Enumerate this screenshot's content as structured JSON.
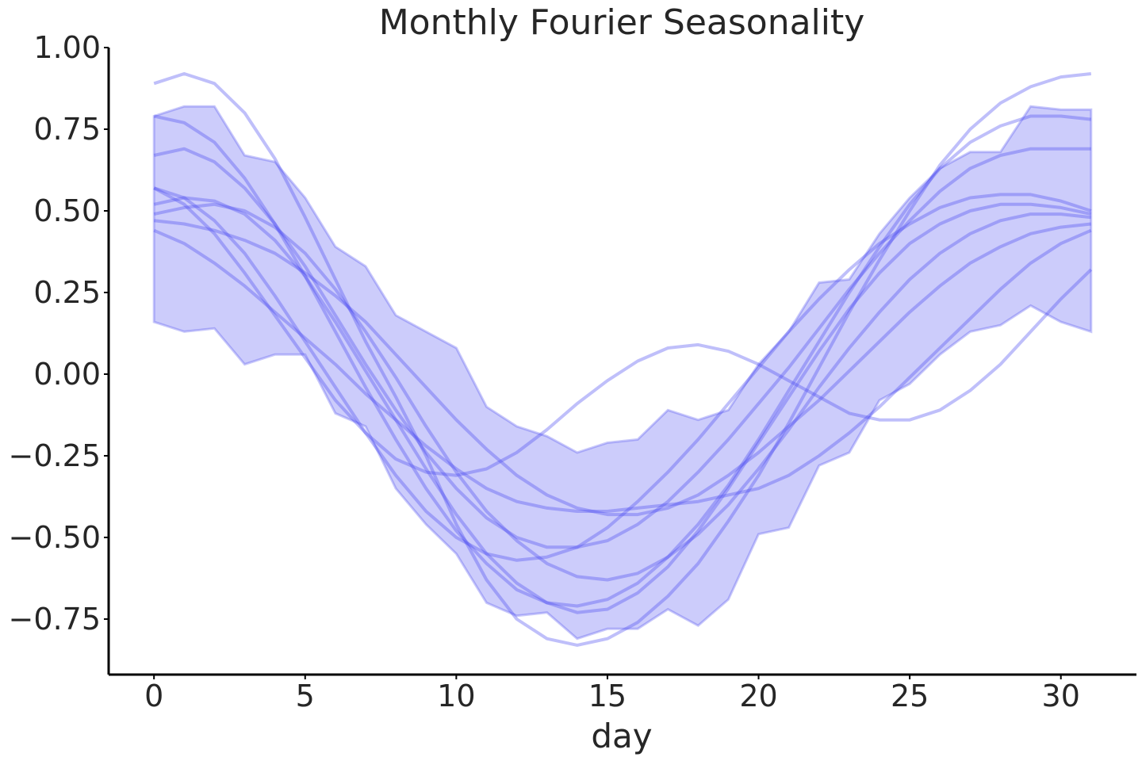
{
  "chart_data": {
    "type": "line",
    "title": "Monthly Fourier Seasonality",
    "xlabel": "day",
    "ylabel": "",
    "xlim": [
      -1.5,
      32.5
    ],
    "ylim": [
      -0.92,
      1.0
    ],
    "xticks": [
      0,
      5,
      10,
      15,
      20,
      25,
      30
    ],
    "xtick_labels": [
      "0",
      "5",
      "10",
      "15",
      "20",
      "25",
      "30"
    ],
    "yticks": [
      -0.75,
      -0.5,
      -0.25,
      0.0,
      0.25,
      0.5,
      0.75,
      1.0
    ],
    "ytick_labels": [
      "−0.75",
      "−0.50",
      "−0.25",
      "0.00",
      "0.25",
      "0.50",
      "0.75",
      "1.00"
    ],
    "grid": false,
    "legend": "none",
    "color": "#4848f0",
    "x": [
      0,
      1,
      2,
      3,
      4,
      5,
      6,
      7,
      8,
      9,
      10,
      11,
      12,
      13,
      14,
      15,
      16,
      17,
      18,
      19,
      20,
      21,
      22,
      23,
      24,
      25,
      26,
      27,
      28,
      29,
      30,
      31
    ],
    "band": {
      "upper": [
        0.79,
        0.82,
        0.82,
        0.67,
        0.65,
        0.54,
        0.39,
        0.33,
        0.18,
        0.13,
        0.08,
        -0.1,
        -0.16,
        -0.19,
        -0.24,
        -0.21,
        -0.2,
        -0.11,
        -0.14,
        -0.11,
        0.03,
        0.13,
        0.28,
        0.29,
        0.43,
        0.54,
        0.63,
        0.68,
        0.68,
        0.82,
        0.81,
        0.81
      ],
      "lower": [
        0.16,
        0.13,
        0.14,
        0.03,
        0.06,
        0.06,
        -0.12,
        -0.16,
        -0.35,
        -0.46,
        -0.55,
        -0.7,
        -0.74,
        -0.73,
        -0.81,
        -0.78,
        -0.78,
        -0.72,
        -0.77,
        -0.69,
        -0.49,
        -0.47,
        -0.28,
        -0.24,
        -0.08,
        -0.03,
        0.06,
        0.13,
        0.15,
        0.21,
        0.16,
        0.13
      ]
    },
    "series": [
      {
        "values": [
          0.89,
          0.92,
          0.89,
          0.8,
          0.66,
          0.48,
          0.29,
          0.1,
          -0.07,
          -0.25,
          -0.46,
          -0.63,
          -0.75,
          -0.81,
          -0.83,
          -0.81,
          -0.76,
          -0.68,
          -0.58,
          -0.45,
          -0.31,
          -0.15,
          0.02,
          0.19,
          0.35,
          0.5,
          0.64,
          0.75,
          0.83,
          0.88,
          0.91,
          0.92
        ]
      },
      {
        "values": [
          0.79,
          0.77,
          0.71,
          0.6,
          0.46,
          0.3,
          0.13,
          -0.04,
          -0.2,
          -0.35,
          -0.48,
          -0.58,
          -0.66,
          -0.7,
          -0.71,
          -0.69,
          -0.64,
          -0.56,
          -0.46,
          -0.34,
          -0.2,
          -0.05,
          0.1,
          0.25,
          0.39,
          0.52,
          0.63,
          0.71,
          0.76,
          0.79,
          0.79,
          0.78
        ]
      },
      {
        "values": [
          0.67,
          0.69,
          0.65,
          0.57,
          0.46,
          0.33,
          0.18,
          0.03,
          -0.11,
          -0.24,
          -0.35,
          -0.44,
          -0.5,
          -0.53,
          -0.53,
          -0.51,
          -0.46,
          -0.39,
          -0.3,
          -0.2,
          -0.09,
          0.02,
          0.14,
          0.26,
          0.37,
          0.47,
          0.56,
          0.63,
          0.67,
          0.69,
          0.69,
          0.69
        ]
      },
      {
        "values": [
          0.57,
          0.54,
          0.47,
          0.37,
          0.24,
          0.1,
          -0.04,
          -0.18,
          -0.31,
          -0.42,
          -0.5,
          -0.55,
          -0.57,
          -0.56,
          -0.53,
          -0.47,
          -0.39,
          -0.3,
          -0.2,
          -0.09,
          0.02,
          0.13,
          0.23,
          0.32,
          0.4,
          0.46,
          0.51,
          0.54,
          0.55,
          0.55,
          0.53,
          0.5
        ]
      },
      {
        "values": [
          0.52,
          0.54,
          0.53,
          0.49,
          0.41,
          0.3,
          0.16,
          0.01,
          -0.14,
          -0.29,
          -0.43,
          -0.55,
          -0.64,
          -0.7,
          -0.73,
          -0.72,
          -0.67,
          -0.59,
          -0.48,
          -0.35,
          -0.21,
          -0.07,
          0.07,
          0.2,
          0.31,
          0.4,
          0.46,
          0.5,
          0.52,
          0.52,
          0.51,
          0.49
        ]
      },
      {
        "values": [
          0.49,
          0.51,
          0.52,
          0.5,
          0.45,
          0.37,
          0.26,
          0.13,
          -0.01,
          -0.16,
          -0.3,
          -0.42,
          -0.51,
          -0.58,
          -0.62,
          -0.63,
          -0.61,
          -0.56,
          -0.49,
          -0.4,
          -0.29,
          -0.17,
          -0.04,
          0.08,
          0.19,
          0.29,
          0.37,
          0.43,
          0.47,
          0.49,
          0.49,
          0.48
        ]
      },
      {
        "values": [
          0.47,
          0.46,
          0.44,
          0.41,
          0.37,
          0.31,
          0.24,
          0.16,
          0.06,
          -0.04,
          -0.14,
          -0.23,
          -0.31,
          -0.37,
          -0.41,
          -0.43,
          -0.43,
          -0.41,
          -0.37,
          -0.31,
          -0.24,
          -0.16,
          -0.08,
          0.01,
          0.1,
          0.19,
          0.27,
          0.34,
          0.39,
          0.43,
          0.45,
          0.46
        ]
      },
      {
        "values": [
          0.44,
          0.4,
          0.34,
          0.27,
          0.19,
          0.11,
          0.03,
          -0.06,
          -0.14,
          -0.22,
          -0.29,
          -0.35,
          -0.39,
          -0.41,
          -0.42,
          -0.42,
          -0.41,
          -0.4,
          -0.39,
          -0.37,
          -0.35,
          -0.31,
          -0.25,
          -0.18,
          -0.1,
          -0.01,
          0.08,
          0.17,
          0.26,
          0.34,
          0.4,
          0.44
        ]
      },
      {
        "values": [
          0.57,
          0.52,
          0.43,
          0.31,
          0.18,
          0.05,
          -0.08,
          -0.18,
          -0.26,
          -0.3,
          -0.31,
          -0.29,
          -0.24,
          -0.17,
          -0.09,
          -0.02,
          0.04,
          0.08,
          0.09,
          0.07,
          0.03,
          -0.02,
          -0.07,
          -0.12,
          -0.14,
          -0.14,
          -0.11,
          -0.05,
          0.03,
          0.13,
          0.23,
          0.32
        ]
      }
    ]
  }
}
